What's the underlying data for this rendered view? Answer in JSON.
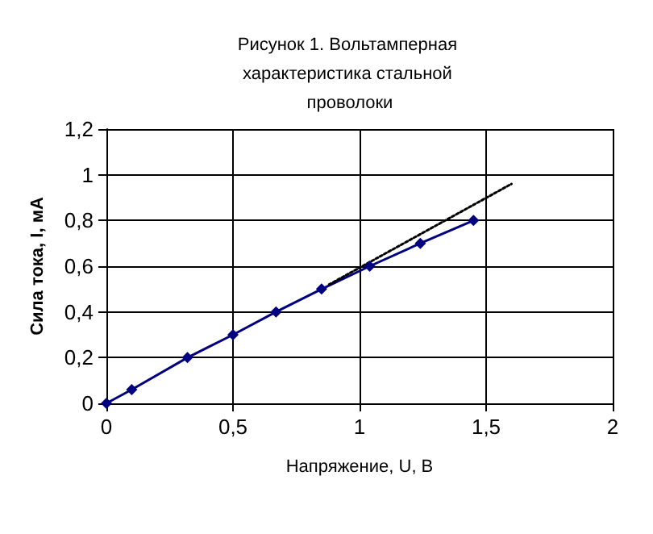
{
  "chart_data": {
    "type": "line",
    "title": "Рисунок 1. Вольтамперная характеристика стальной проволоки",
    "xlabel": "Напряжение, U, В",
    "ylabel": "Сила тока, I, мА",
    "xlim": [
      0,
      2
    ],
    "xticks": [
      0,
      {
        "value": 0.5,
        "label": "0,5"
      },
      1,
      {
        "value": 1.5,
        "label": "1,5"
      },
      2
    ],
    "ylim": [
      0,
      1.2
    ],
    "yticks": [
      0,
      {
        "value": 0.2,
        "label": "0,2"
      },
      {
        "value": 0.4,
        "label": "0,4"
      },
      {
        "value": 0.6,
        "label": "0,6"
      },
      {
        "value": 0.8,
        "label": "0,8"
      },
      1,
      {
        "value": 1.2,
        "label": "1,2"
      }
    ],
    "grid": true,
    "marker": "diamond",
    "line_style": "solid",
    "series": [
      {
        "color": "#000080",
        "x": [
          0,
          0.1,
          0.32,
          0.5,
          0.67,
          0.85,
          1.04,
          1.24,
          1.45
        ],
        "values": [
          0,
          0.06,
          0.2,
          0.3,
          0.4,
          0.5,
          0.6,
          0.7,
          0.8
        ]
      },
      {
        "type": "line",
        "color": "#000000",
        "line_style": "dotted",
        "marker": "none",
        "x": [
          0.88,
          1.6
        ],
        "values": [
          0.52,
          0.96
        ]
      }
    ]
  }
}
